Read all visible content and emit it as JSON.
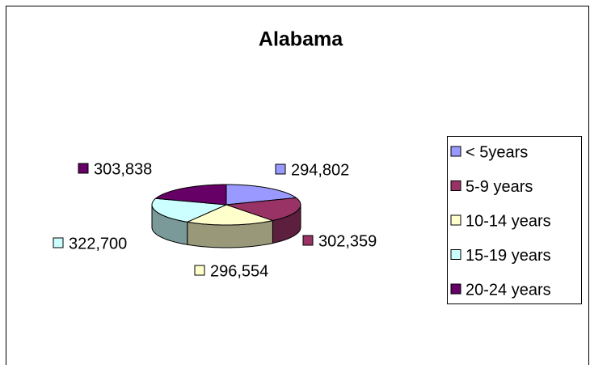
{
  "chart_data": {
    "type": "pie",
    "title": "Alabama",
    "categories": [
      "< 5years",
      "5-9 years",
      "10-14 years",
      "15-19 years",
      "20-24 years"
    ],
    "values": [
      294802,
      302359,
      296554,
      322700,
      303838
    ],
    "value_labels": [
      "294,802",
      "302,359",
      "296,554",
      "322,700",
      "303,838"
    ],
    "colors": [
      "#9999ff",
      "#993366",
      "#ffffcc",
      "#ccffff",
      "#660066"
    ],
    "legend": "right"
  }
}
